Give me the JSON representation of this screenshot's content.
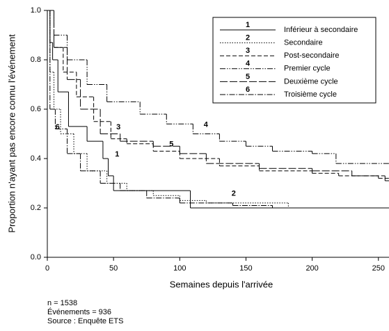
{
  "chart_data": {
    "type": "step",
    "x_label": "Semaines depuis l'arrivée",
    "y_label": "Proportion n'ayant pas encore connu l'événement",
    "xlim": [
      0,
      258
    ],
    "ylim": [
      0,
      1
    ],
    "xticks": [
      0,
      50,
      100,
      150,
      200,
      250
    ],
    "yticks": [
      {
        "value": 0,
        "label": "0.0"
      },
      {
        "value": 0.2,
        "label": "0.2"
      },
      {
        "value": 0.4,
        "label": "0.4"
      },
      {
        "value": 0.6,
        "label": "0.6"
      },
      {
        "value": 0.8,
        "label": "0.8"
      },
      {
        "value": 1,
        "label": "1.0"
      }
    ],
    "legend": "top-right",
    "series": [
      {
        "label": "1",
        "name": "Inférieur à secondaire",
        "color": "#000000",
        "linestyle": "solid",
        "x": [
          0,
          2,
          4,
          8,
          16,
          30,
          42,
          46,
          50,
          108
        ],
        "values": [
          1.0,
          0.87,
          0.8,
          0.67,
          0.53,
          0.47,
          0.4,
          0.33,
          0.27,
          0.2
        ]
      },
      {
        "label": "2",
        "name": "Secondaire",
        "color": "#000000",
        "linestyle": "dotted",
        "x": [
          0,
          2,
          5,
          10,
          20,
          30,
          45,
          60,
          80,
          100,
          120,
          182
        ],
        "values": [
          1.0,
          0.75,
          0.6,
          0.5,
          0.42,
          0.35,
          0.3,
          0.27,
          0.25,
          0.23,
          0.22,
          0.2
        ]
      },
      {
        "label": "3",
        "name": "Post-secondaire",
        "color": "#000000",
        "linestyle": "dashed",
        "x": [
          0,
          5,
          12,
          22,
          35,
          48,
          60,
          80,
          100,
          130,
          160,
          200,
          220,
          250
        ],
        "values": [
          1.0,
          0.85,
          0.75,
          0.65,
          0.55,
          0.48,
          0.46,
          0.43,
          0.4,
          0.37,
          0.35,
          0.34,
          0.33,
          0.32
        ]
      },
      {
        "label": "4",
        "name": "Premier cycle",
        "color": "#000000",
        "linestyle": "dashdotdot",
        "x": [
          0,
          5,
          15,
          30,
          45,
          70,
          90,
          110,
          130,
          150,
          170,
          200,
          218
        ],
        "values": [
          1.0,
          0.9,
          0.8,
          0.7,
          0.63,
          0.58,
          0.54,
          0.5,
          0.47,
          0.45,
          0.43,
          0.42,
          0.38
        ]
      },
      {
        "label": "5",
        "name": "Deuxième cycle",
        "color": "#000000",
        "linestyle": "longdash",
        "x": [
          0,
          5,
          15,
          25,
          40,
          55,
          80,
          100,
          120,
          160,
          200,
          230,
          255
        ],
        "values": [
          1.0,
          0.85,
          0.72,
          0.6,
          0.5,
          0.47,
          0.45,
          0.42,
          0.38,
          0.36,
          0.35,
          0.33,
          0.31
        ]
      },
      {
        "label": "6",
        "name": "Troisième cycle",
        "color": "#000000",
        "linestyle": "dashdot",
        "x": [
          0,
          2,
          6,
          15,
          25,
          40,
          55,
          75,
          100,
          140,
          170
        ],
        "values": [
          1.0,
          0.6,
          0.52,
          0.42,
          0.35,
          0.3,
          0.27,
          0.24,
          0.22,
          0.21,
          0.2
        ]
      }
    ],
    "annotations": [
      {
        "series": 0,
        "x": 49,
        "y": 0.4
      },
      {
        "series": 1,
        "x": 137,
        "y": 0.24
      },
      {
        "series": 2,
        "x": 50,
        "y": 0.51
      },
      {
        "series": 3,
        "x": 116,
        "y": 0.52
      },
      {
        "series": 4,
        "x": 90,
        "y": 0.44
      },
      {
        "series": 5,
        "x": 4,
        "y": 0.51
      }
    ],
    "notes": [
      "n = 1538",
      "Événements = 936",
      "Source : Enquête ETS"
    ]
  }
}
